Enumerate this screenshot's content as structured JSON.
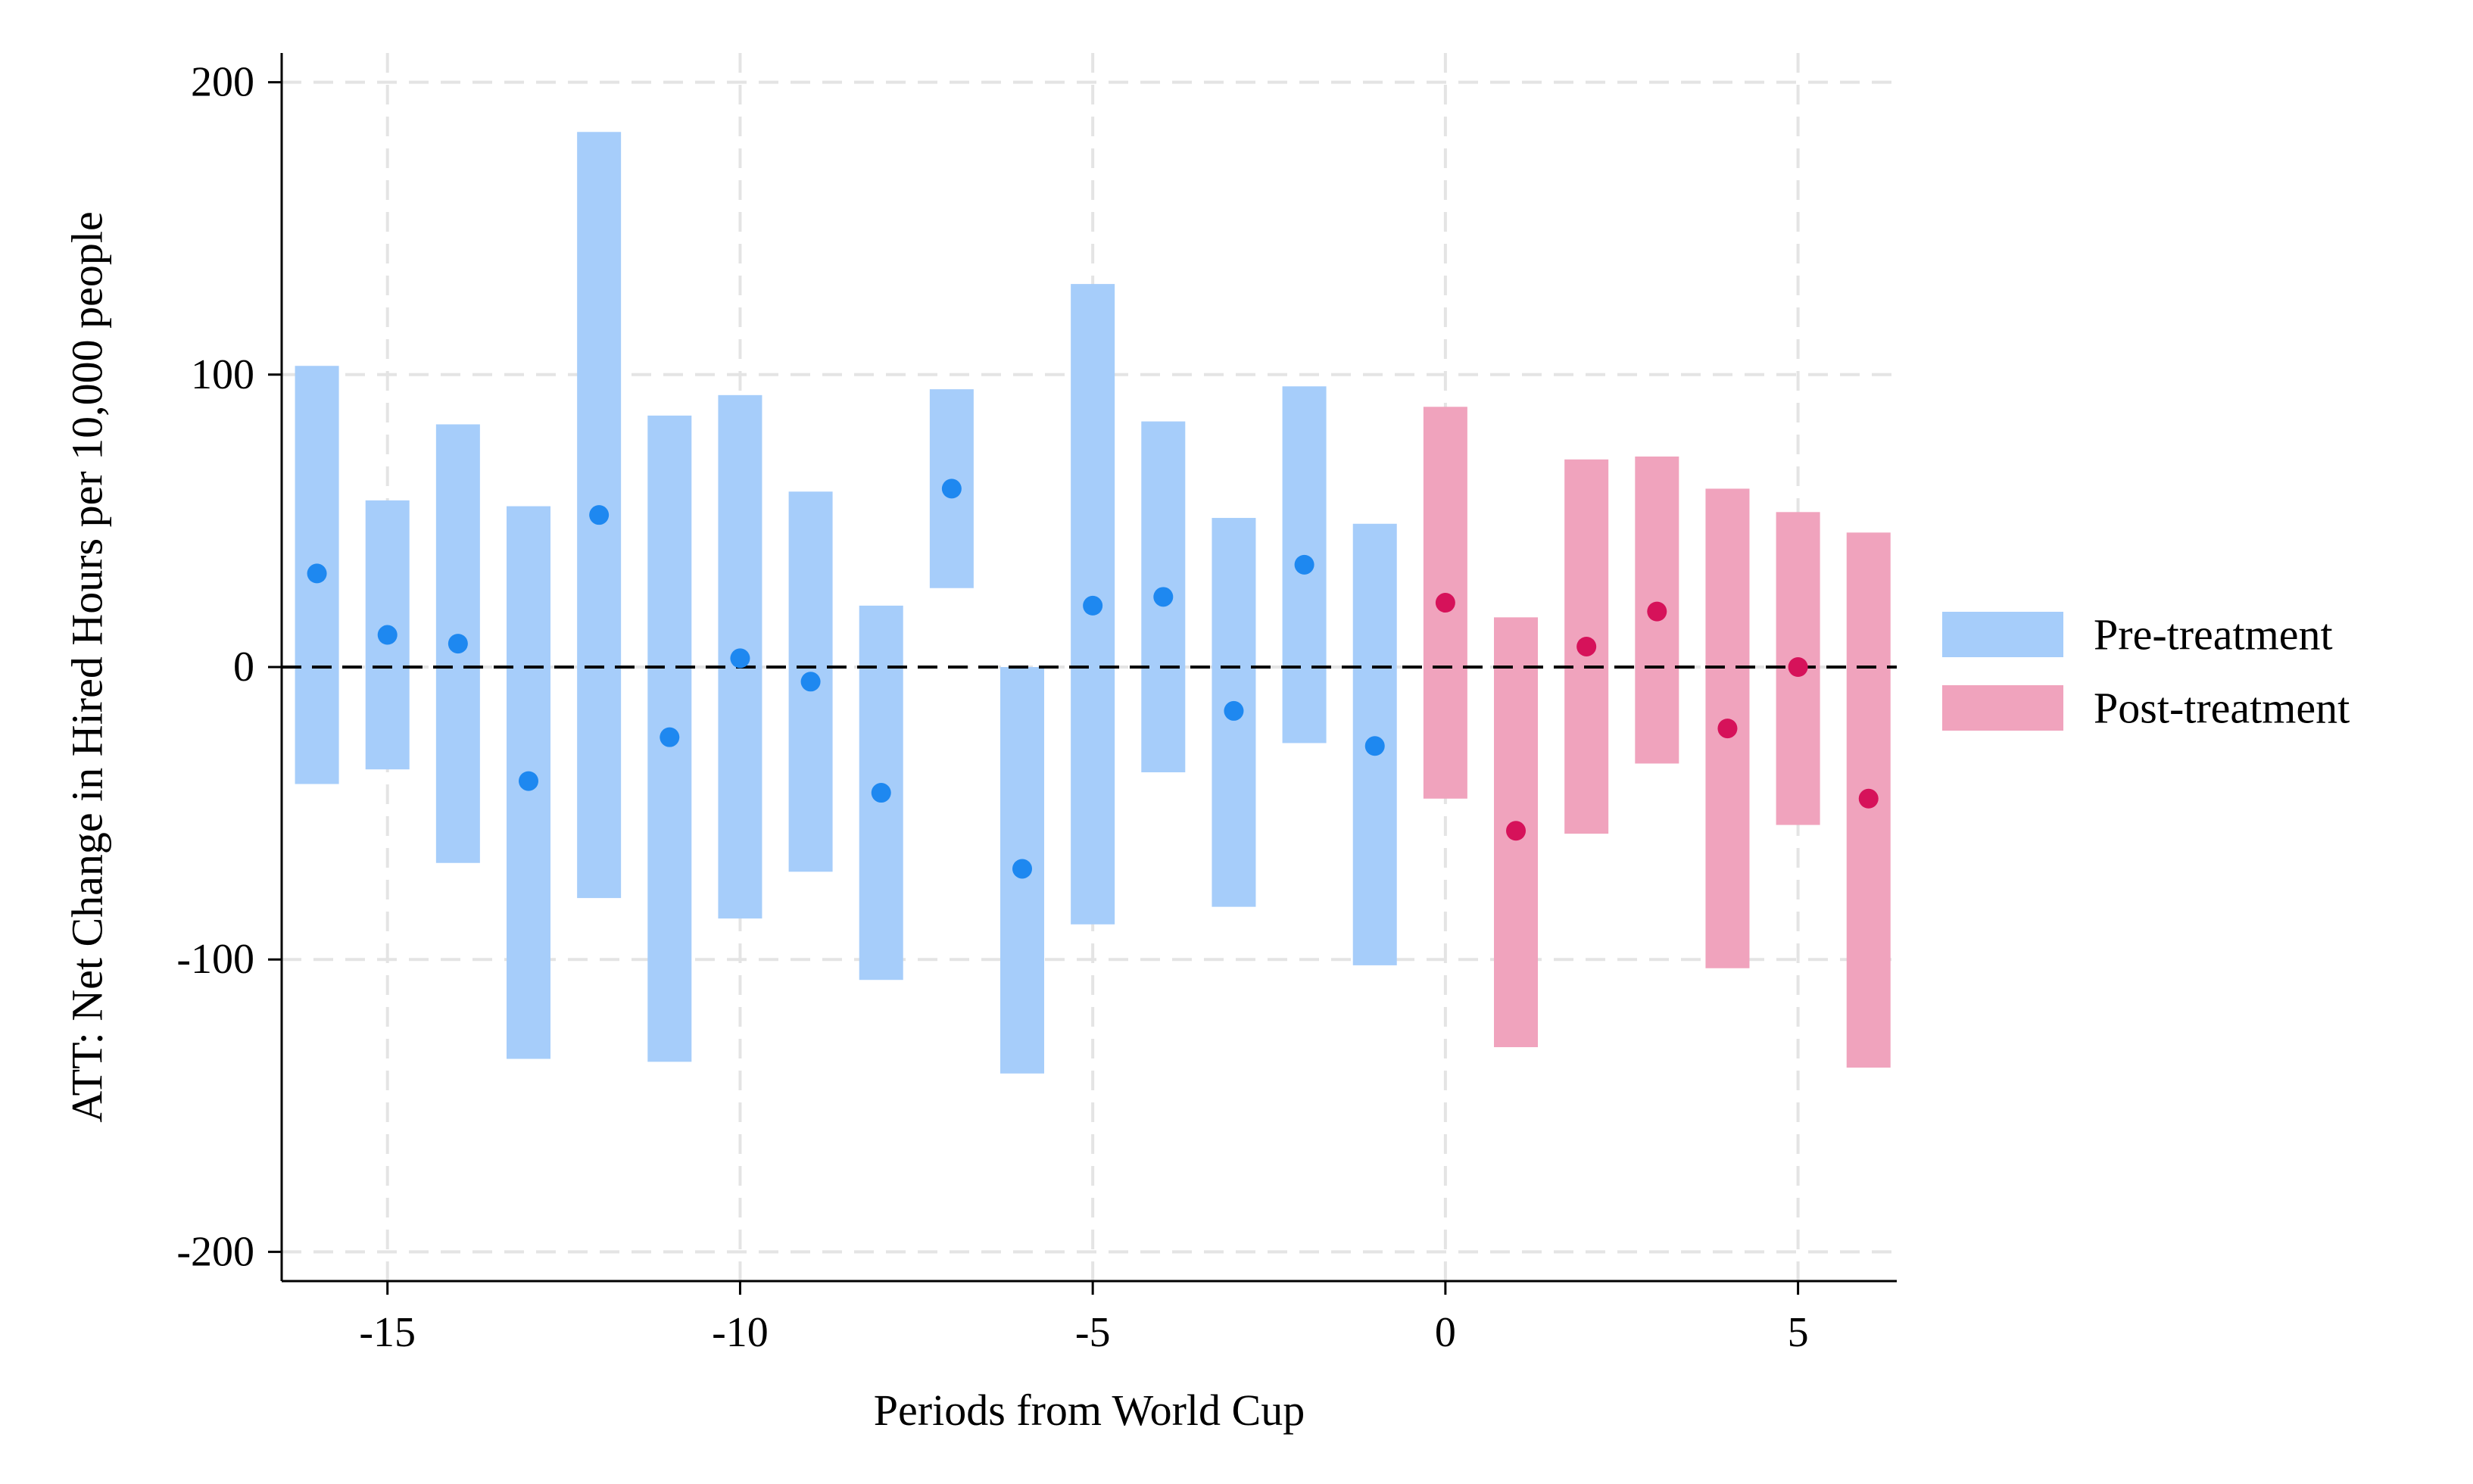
{
  "chart_data": {
    "type": "errorbar",
    "title": "",
    "xlabel": "Periods from World Cup",
    "ylabel": "ATT: Net Change in Hired Hours per 10,000 people",
    "xlim": [
      -16.5,
      6.4
    ],
    "ylim": [
      -210,
      210
    ],
    "x_ticks": [
      -15,
      -10,
      -5,
      0,
      5
    ],
    "y_ticks": [
      200,
      100,
      0,
      -100,
      -200
    ],
    "grid": true,
    "reference_line": 0,
    "legend_position": "right",
    "colors": {
      "pre_bar": "#a6cdfa",
      "pre_point": "#1e88f0",
      "post_bar": "#f0a3bd",
      "post_point": "#d6125a"
    },
    "series": [
      {
        "name": "Pre-treatment",
        "points": [
          {
            "x": -16,
            "y": 32,
            "lower": -40,
            "upper": 103
          },
          {
            "x": -15,
            "y": 11,
            "lower": -35,
            "upper": 57
          },
          {
            "x": -14,
            "y": 8,
            "lower": -67,
            "upper": 83
          },
          {
            "x": -13,
            "y": -39,
            "lower": -134,
            "upper": 55
          },
          {
            "x": -12,
            "y": 52,
            "lower": -79,
            "upper": 183
          },
          {
            "x": -11,
            "y": -24,
            "lower": -135,
            "upper": 86
          },
          {
            "x": -10,
            "y": 3,
            "lower": -86,
            "upper": 93
          },
          {
            "x": -9,
            "y": -5,
            "lower": -70,
            "upper": 60
          },
          {
            "x": -8,
            "y": -43,
            "lower": -107,
            "upper": 21
          },
          {
            "x": -7,
            "y": 61,
            "lower": 27,
            "upper": 95
          },
          {
            "x": -6,
            "y": -69,
            "lower": -139,
            "upper": 0
          },
          {
            "x": -5,
            "y": 21,
            "lower": -88,
            "upper": 131
          },
          {
            "x": -4,
            "y": 24,
            "lower": -36,
            "upper": 84
          },
          {
            "x": -3,
            "y": -15,
            "lower": -82,
            "upper": 51
          },
          {
            "x": -2,
            "y": 35,
            "lower": -26,
            "upper": 96
          },
          {
            "x": -1,
            "y": -27,
            "lower": -102,
            "upper": 49
          }
        ]
      },
      {
        "name": "Post-treatment",
        "points": [
          {
            "x": 0,
            "y": 22,
            "lower": -45,
            "upper": 89
          },
          {
            "x": 1,
            "y": -56,
            "lower": -130,
            "upper": 17
          },
          {
            "x": 2,
            "y": 7,
            "lower": -57,
            "upper": 71
          },
          {
            "x": 3,
            "y": 19,
            "lower": -33,
            "upper": 72
          },
          {
            "x": 4,
            "y": -21,
            "lower": -103,
            "upper": 61
          },
          {
            "x": 5,
            "y": 0,
            "lower": -54,
            "upper": 53
          },
          {
            "x": 6,
            "y": -45,
            "lower": -137,
            "upper": 46
          }
        ]
      }
    ]
  }
}
